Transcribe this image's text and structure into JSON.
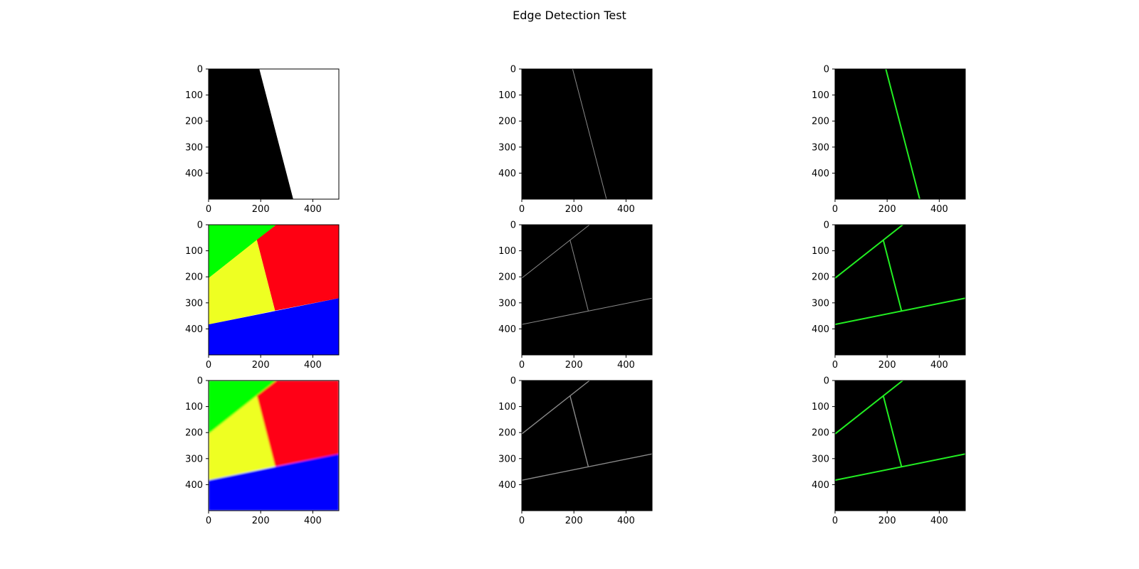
{
  "title": "Edge Detection Test",
  "colors": {
    "background": "#000000",
    "white": "#ffffff",
    "green": "#00ff00",
    "red": "#ff0012",
    "yellow": "#eeff22",
    "blue": "#0000ff",
    "edge_gray": "#8a8a8a",
    "edge_green": "#22ee22"
  },
  "chart_data": [
    {
      "type": "image",
      "panel": "original",
      "row": 0,
      "col": 0,
      "xlim": [
        0,
        500
      ],
      "ylim": [
        500,
        0
      ],
      "xticks": [
        0,
        200,
        400
      ],
      "yticks": [
        0,
        100,
        200,
        300,
        400
      ],
      "regions": [
        {
          "name": "left",
          "color": "white_off",
          "fill": "#000000",
          "polygon": [
            [
              0,
              0
            ],
            [
              195,
              0
            ],
            [
              325,
              500
            ],
            [
              0,
              500
            ]
          ]
        },
        {
          "name": "right",
          "fill": "#ffffff",
          "polygon": [
            [
              195,
              0
            ],
            [
              500,
              0
            ],
            [
              500,
              500
            ],
            [
              325,
              500
            ]
          ]
        }
      ]
    },
    {
      "type": "image",
      "panel": "edges",
      "row": 0,
      "col": 1,
      "xlim": [
        0,
        500
      ],
      "ylim": [
        500,
        0
      ],
      "xticks": [
        0,
        200,
        400
      ],
      "yticks": [
        0,
        100,
        200,
        300,
        400
      ],
      "segments": [
        [
          [
            195,
            0
          ],
          [
            325,
            500
          ]
        ]
      ],
      "stroke": "edge_gray",
      "width": 1
    },
    {
      "type": "image",
      "panel": "lines",
      "row": 0,
      "col": 2,
      "xlim": [
        0,
        500
      ],
      "ylim": [
        500,
        0
      ],
      "xticks": [
        0,
        200,
        400
      ],
      "yticks": [
        0,
        100,
        200,
        300,
        400
      ],
      "segments": [
        [
          [
            195,
            0
          ],
          [
            325,
            500
          ]
        ]
      ],
      "stroke": "edge_green",
      "width": 2
    },
    {
      "type": "image",
      "panel": "original",
      "row": 1,
      "col": 0,
      "xlim": [
        0,
        500
      ],
      "ylim": [
        500,
        0
      ],
      "xticks": [
        0,
        200,
        400
      ],
      "yticks": [
        0,
        100,
        200,
        300,
        400
      ],
      "regions": [
        {
          "name": "green",
          "fill": "#00ff00",
          "polygon": [
            [
              0,
              0
            ],
            [
              260,
              0
            ],
            [
              0,
              205
            ]
          ]
        },
        {
          "name": "red",
          "fill": "#ff0012",
          "polygon": [
            [
              260,
              0
            ],
            [
              500,
              0
            ],
            [
              500,
              282
            ],
            [
              255,
              330
            ],
            [
              185,
              58
            ]
          ]
        },
        {
          "name": "yellow",
          "fill": "#eeff22",
          "polygon": [
            [
              0,
              205
            ],
            [
              185,
              58
            ],
            [
              255,
              330
            ],
            [
              0,
              383
            ]
          ]
        },
        {
          "name": "blue",
          "fill": "#0000ff",
          "polygon": [
            [
              0,
              383
            ],
            [
              500,
              282
            ],
            [
              500,
              500
            ],
            [
              0,
              500
            ]
          ]
        }
      ]
    },
    {
      "type": "image",
      "panel": "edges",
      "row": 1,
      "col": 1,
      "xlim": [
        0,
        500
      ],
      "ylim": [
        500,
        0
      ],
      "xticks": [
        0,
        200,
        400
      ],
      "yticks": [
        0,
        100,
        200,
        300,
        400
      ],
      "segments": [
        [
          [
            0,
            205
          ],
          [
            260,
            0
          ]
        ],
        [
          [
            185,
            58
          ],
          [
            255,
            330
          ]
        ],
        [
          [
            0,
            383
          ],
          [
            500,
            282
          ]
        ]
      ],
      "stroke": "edge_gray",
      "width": 1
    },
    {
      "type": "image",
      "panel": "lines",
      "row": 1,
      "col": 2,
      "xlim": [
        0,
        500
      ],
      "ylim": [
        500,
        0
      ],
      "xticks": [
        0,
        200,
        400
      ],
      "yticks": [
        0,
        100,
        200,
        300,
        400
      ],
      "segments": [
        [
          [
            0,
            205
          ],
          [
            260,
            0
          ]
        ],
        [
          [
            185,
            58
          ],
          [
            255,
            330
          ]
        ],
        [
          [
            0,
            383
          ],
          [
            500,
            282
          ]
        ]
      ],
      "stroke": "edge_green",
      "width": 2
    },
    {
      "type": "image",
      "panel": "original",
      "row": 2,
      "col": 0,
      "xlim": [
        0,
        500
      ],
      "ylim": [
        500,
        0
      ],
      "xticks": [
        0,
        200,
        400
      ],
      "yticks": [
        0,
        100,
        200,
        300,
        400
      ],
      "blur": true,
      "regions": [
        {
          "name": "green",
          "fill": "#00ff00",
          "polygon": [
            [
              0,
              0
            ],
            [
              260,
              0
            ],
            [
              0,
              205
            ]
          ]
        },
        {
          "name": "red",
          "fill": "#ff0012",
          "polygon": [
            [
              260,
              0
            ],
            [
              500,
              0
            ],
            [
              500,
              282
            ],
            [
              255,
              330
            ],
            [
              185,
              58
            ]
          ]
        },
        {
          "name": "yellow",
          "fill": "#eeff22",
          "polygon": [
            [
              0,
              205
            ],
            [
              185,
              58
            ],
            [
              255,
              330
            ],
            [
              0,
              383
            ]
          ]
        },
        {
          "name": "blue",
          "fill": "#0000ff",
          "polygon": [
            [
              0,
              383
            ],
            [
              500,
              282
            ],
            [
              500,
              500
            ],
            [
              0,
              500
            ]
          ]
        }
      ]
    },
    {
      "type": "image",
      "panel": "edges",
      "row": 2,
      "col": 1,
      "xlim": [
        0,
        500
      ],
      "ylim": [
        500,
        0
      ],
      "xticks": [
        0,
        200,
        400
      ],
      "yticks": [
        0,
        100,
        200,
        300,
        400
      ],
      "segments": [
        [
          [
            0,
            205
          ],
          [
            260,
            0
          ]
        ],
        [
          [
            185,
            58
          ],
          [
            255,
            330
          ]
        ],
        [
          [
            0,
            383
          ],
          [
            500,
            282
          ]
        ]
      ],
      "stroke": "edge_gray",
      "width": 1.4
    },
    {
      "type": "image",
      "panel": "lines",
      "row": 2,
      "col": 2,
      "xlim": [
        0,
        500
      ],
      "ylim": [
        500,
        0
      ],
      "xticks": [
        0,
        200,
        400
      ],
      "yticks": [
        0,
        100,
        200,
        300,
        400
      ],
      "segments": [
        [
          [
            0,
            205
          ],
          [
            260,
            0
          ]
        ],
        [
          [
            185,
            58
          ],
          [
            255,
            330
          ]
        ],
        [
          [
            0,
            383
          ],
          [
            500,
            282
          ]
        ]
      ],
      "stroke": "edge_green",
      "width": 2
    }
  ]
}
